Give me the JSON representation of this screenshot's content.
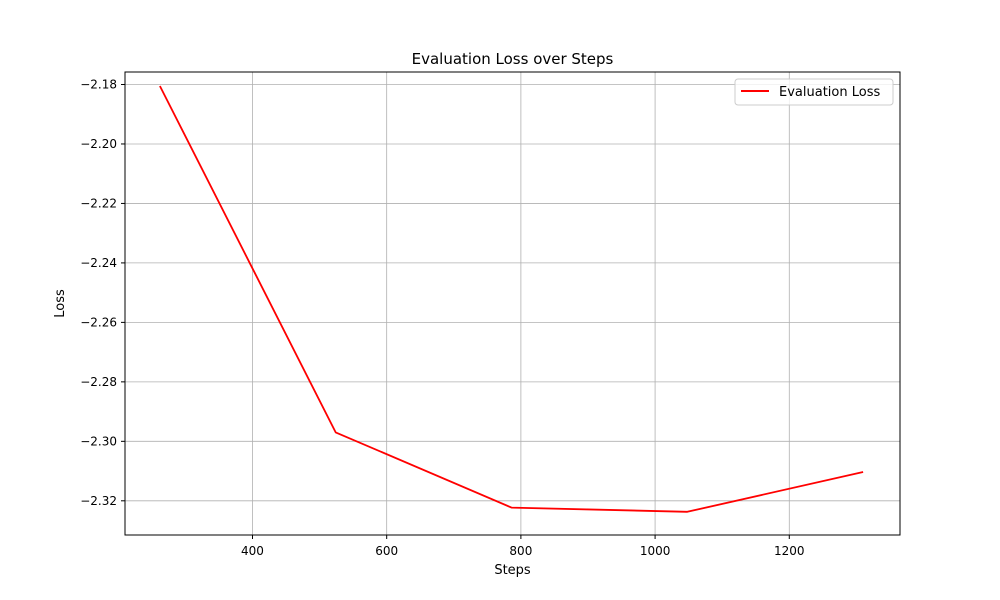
{
  "chart_data": {
    "type": "line",
    "title": "Evaluation Loss over Steps",
    "xlabel": "Steps",
    "ylabel": "Loss",
    "xlim": [
      210,
      1365
    ],
    "ylim": [
      -2.3315,
      -2.1758
    ],
    "xticks": [
      400,
      600,
      800,
      1000,
      1200
    ],
    "yticks": [
      -2.18,
      -2.2,
      -2.22,
      -2.24,
      -2.26,
      -2.28,
      -2.3,
      -2.32
    ],
    "ytick_labels": [
      "−2.18",
      "−2.20",
      "−2.22",
      "−2.24",
      "−2.26",
      "−2.28",
      "−2.30",
      "−2.32"
    ],
    "grid": true,
    "legend_position": "top-right",
    "series": [
      {
        "name": "Evaluation Loss",
        "color": "#ff0000",
        "x": [
          262,
          524,
          786,
          1048,
          1310
        ],
        "y": [
          -2.1805,
          -2.297,
          -2.3223,
          -2.3237,
          -2.3103
        ]
      }
    ]
  }
}
